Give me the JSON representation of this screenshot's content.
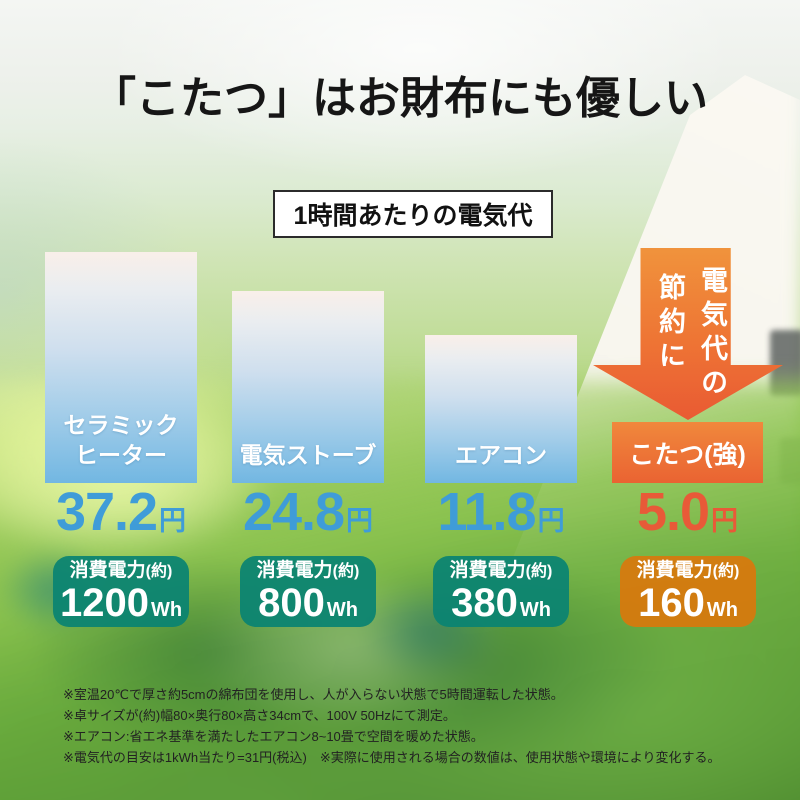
{
  "title": "「こたつ」はお財布にも優しい",
  "subtitle_box": "1時間あたりの電気代",
  "savings_arrow": {
    "column_right": "電気代の",
    "column_left": "節約に",
    "full_text": "電気代の節約に"
  },
  "columns": [
    {
      "name": "セラミックヒーター",
      "name_lines": [
        "セラミック",
        "ヒーター"
      ],
      "price_value": "37.2",
      "price_unit": "円",
      "power_label": "消費電力",
      "power_label_approx": "(約)",
      "power_value": "1200",
      "power_unit": "Wh"
    },
    {
      "name": "電気ストーブ",
      "price_value": "24.8",
      "price_unit": "円",
      "power_label": "消費電力",
      "power_label_approx": "(約)",
      "power_value": "800",
      "power_unit": "Wh"
    },
    {
      "name": "エアコン",
      "price_value": "11.8",
      "price_unit": "円",
      "power_label": "消費電力",
      "power_label_approx": "(約)",
      "power_value": "380",
      "power_unit": "Wh"
    },
    {
      "name": "こたつ(強)",
      "price_value": "5.0",
      "price_unit": "円",
      "power_label": "消費電力",
      "power_label_approx": "(約)",
      "power_value": "160",
      "power_unit": "Wh"
    }
  ],
  "footnotes": [
    "※室温20℃で厚さ約5cmの綿布団を使用し、人が入らない状態で5時間運転した状態。",
    "※卓サイズが(約)幅80×奥行80×高さ34cmで、100V 50Hzにて測定。",
    "※エアコン:省エネ基準を満たしたエアコン8~10畳で空間を暖めた状態。",
    "※電気代の目安は1kWh当たり=31円(税込)　※実際に使用される場合の数値は、使用状態や環境により変化する。"
  ],
  "colors": {
    "price_blue": "#3f9cd8",
    "price_orange": "#e85a38",
    "badge_teal": "#0a8372",
    "badge_orange": "#d8790d",
    "bar_gradient_top": "#f9efe9",
    "bar_gradient_bottom": "#72b7e2",
    "arrow_orange_top": "#f0933c",
    "arrow_orange_bottom": "#e95a33",
    "title_text": "#161616"
  },
  "chart_data": {
    "type": "bar",
    "title": "1時間あたりの電気代",
    "categories": [
      "セラミックヒーター",
      "電気ストーブ",
      "エアコン",
      "こたつ(強)"
    ],
    "series": [
      {
        "name": "電気代(円/1時間)",
        "unit": "円",
        "values": [
          37.2,
          24.8,
          11.8,
          5.0
        ]
      },
      {
        "name": "消費電力(約Wh)",
        "unit": "Wh",
        "values": [
          1200,
          800,
          380,
          160
        ]
      }
    ],
    "annotations": [
      "電気代の節約に"
    ],
    "legend_position": "none",
    "grid": false,
    "xlabel": "",
    "ylabel": ""
  }
}
